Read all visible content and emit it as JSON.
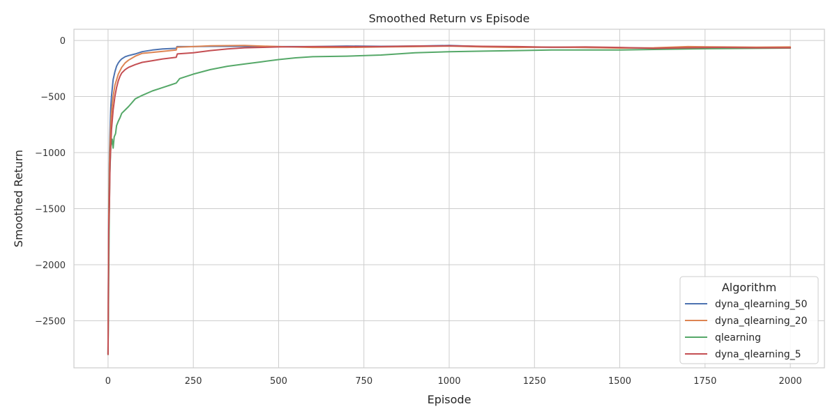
{
  "chart_data": {
    "type": "line",
    "title": "Smoothed Return vs Episode",
    "xlabel": "Episode",
    "ylabel": "Smoothed Return",
    "xlim": [
      -100,
      2100
    ],
    "ylim": [
      -2920,
      100
    ],
    "xticks": [
      0,
      250,
      500,
      750,
      1000,
      1250,
      1500,
      1750,
      2000
    ],
    "yticks": [
      0,
      -500,
      -1000,
      -1500,
      -2000,
      -2500
    ],
    "grid": true,
    "legend": {
      "title": "Algorithm",
      "position": "bottom-right"
    },
    "series": [
      {
        "name": "dyna_qlearning_50",
        "color": "#4c72b0",
        "points": [
          [
            0,
            -2800
          ],
          [
            2,
            -1500
          ],
          [
            4,
            -1000
          ],
          [
            6,
            -800
          ],
          [
            8,
            -600
          ],
          [
            10,
            -500
          ],
          [
            15,
            -350
          ],
          [
            20,
            -280
          ],
          [
            25,
            -230
          ],
          [
            30,
            -200
          ],
          [
            35,
            -180
          ],
          [
            40,
            -165
          ],
          [
            50,
            -145
          ],
          [
            60,
            -135
          ],
          [
            80,
            -120
          ],
          [
            100,
            -100
          ],
          [
            130,
            -85
          ],
          [
            160,
            -75
          ],
          [
            200,
            -70
          ],
          [
            202,
            -55
          ],
          [
            250,
            -55
          ],
          [
            300,
            -52
          ],
          [
            400,
            -52
          ],
          [
            500,
            -55
          ],
          [
            600,
            -55
          ],
          [
            700,
            -50
          ],
          [
            800,
            -52
          ],
          [
            900,
            -50
          ],
          [
            1000,
            -45
          ],
          [
            1100,
            -55
          ],
          [
            1200,
            -60
          ],
          [
            1300,
            -60
          ],
          [
            1400,
            -62
          ],
          [
            1500,
            -65
          ],
          [
            1600,
            -68
          ],
          [
            1700,
            -62
          ],
          [
            1800,
            -70
          ],
          [
            1900,
            -65
          ],
          [
            2000,
            -62
          ]
        ]
      },
      {
        "name": "dyna_qlearning_20",
        "color": "#dd8452",
        "points": [
          [
            0,
            -2800
          ],
          [
            2,
            -1600
          ],
          [
            4,
            -1100
          ],
          [
            6,
            -900
          ],
          [
            8,
            -750
          ],
          [
            10,
            -650
          ],
          [
            15,
            -500
          ],
          [
            20,
            -400
          ],
          [
            30,
            -300
          ],
          [
            40,
            -240
          ],
          [
            50,
            -200
          ],
          [
            60,
            -175
          ],
          [
            80,
            -140
          ],
          [
            100,
            -115
          ],
          [
            150,
            -100
          ],
          [
            200,
            -85
          ],
          [
            202,
            -60
          ],
          [
            250,
            -55
          ],
          [
            300,
            -48
          ],
          [
            400,
            -45
          ],
          [
            500,
            -55
          ],
          [
            600,
            -62
          ],
          [
            700,
            -62
          ],
          [
            800,
            -58
          ],
          [
            900,
            -55
          ],
          [
            1000,
            -50
          ],
          [
            1100,
            -58
          ],
          [
            1200,
            -62
          ],
          [
            1300,
            -60
          ],
          [
            1400,
            -62
          ],
          [
            1500,
            -68
          ],
          [
            1600,
            -65
          ],
          [
            1700,
            -55
          ],
          [
            1800,
            -58
          ],
          [
            1900,
            -60
          ],
          [
            2000,
            -58
          ]
        ]
      },
      {
        "name": "qlearning",
        "color": "#55a868",
        "points": [
          [
            0,
            -2800
          ],
          [
            3,
            -1700
          ],
          [
            5,
            -1200
          ],
          [
            8,
            -950
          ],
          [
            12,
            -880
          ],
          [
            15,
            -960
          ],
          [
            18,
            -860
          ],
          [
            22,
            -830
          ],
          [
            25,
            -760
          ],
          [
            30,
            -720
          ],
          [
            35,
            -690
          ],
          [
            40,
            -650
          ],
          [
            50,
            -620
          ],
          [
            60,
            -590
          ],
          [
            80,
            -520
          ],
          [
            100,
            -490
          ],
          [
            130,
            -450
          ],
          [
            160,
            -420
          ],
          [
            180,
            -400
          ],
          [
            200,
            -380
          ],
          [
            210,
            -340
          ],
          [
            250,
            -300
          ],
          [
            300,
            -260
          ],
          [
            350,
            -230
          ],
          [
            400,
            -210
          ],
          [
            450,
            -190
          ],
          [
            500,
            -170
          ],
          [
            550,
            -155
          ],
          [
            600,
            -145
          ],
          [
            700,
            -140
          ],
          [
            800,
            -130
          ],
          [
            900,
            -110
          ],
          [
            1000,
            -100
          ],
          [
            1100,
            -95
          ],
          [
            1200,
            -90
          ],
          [
            1300,
            -85
          ],
          [
            1400,
            -85
          ],
          [
            1500,
            -85
          ],
          [
            1600,
            -80
          ],
          [
            1700,
            -75
          ],
          [
            1800,
            -72
          ],
          [
            1900,
            -70
          ],
          [
            2000,
            -68
          ]
        ]
      },
      {
        "name": "dyna_qlearning_5",
        "color": "#c44e52",
        "points": [
          [
            0,
            -2800
          ],
          [
            2,
            -1700
          ],
          [
            4,
            -1450
          ],
          [
            6,
            -1100
          ],
          [
            8,
            -950
          ],
          [
            10,
            -800
          ],
          [
            15,
            -620
          ],
          [
            20,
            -500
          ],
          [
            25,
            -420
          ],
          [
            30,
            -360
          ],
          [
            35,
            -320
          ],
          [
            40,
            -290
          ],
          [
            50,
            -260
          ],
          [
            60,
            -240
          ],
          [
            80,
            -215
          ],
          [
            100,
            -195
          ],
          [
            130,
            -180
          ],
          [
            160,
            -165
          ],
          [
            200,
            -150
          ],
          [
            203,
            -120
          ],
          [
            250,
            -110
          ],
          [
            300,
            -90
          ],
          [
            350,
            -75
          ],
          [
            400,
            -65
          ],
          [
            500,
            -58
          ],
          [
            600,
            -55
          ],
          [
            700,
            -55
          ],
          [
            800,
            -55
          ],
          [
            900,
            -50
          ],
          [
            1000,
            -48
          ],
          [
            1100,
            -52
          ],
          [
            1200,
            -55
          ],
          [
            1300,
            -60
          ],
          [
            1400,
            -58
          ],
          [
            1500,
            -62
          ],
          [
            1600,
            -70
          ],
          [
            1700,
            -65
          ],
          [
            1800,
            -62
          ],
          [
            1900,
            -65
          ],
          [
            2000,
            -65
          ]
        ]
      }
    ]
  }
}
